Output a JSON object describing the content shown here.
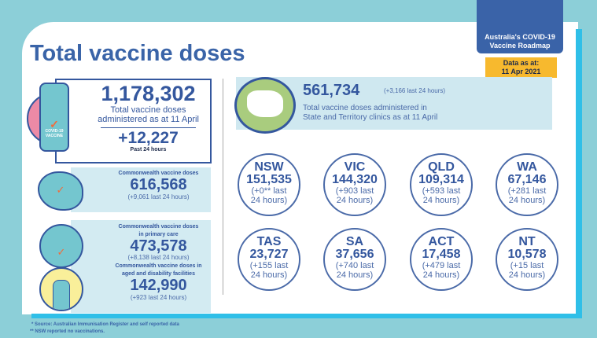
{
  "title": "Total vaccine doses",
  "roadmap": {
    "line1": "Australia's COVID-19",
    "line2": "Vaccine Roadmap"
  },
  "data_as_at": {
    "label": "Data as at:",
    "date": "11 Apr 2021"
  },
  "total": {
    "value": "1,178,302",
    "label1": "Total vaccine doses",
    "label2": "administered as at 11 April",
    "change": "+12,227",
    "change_label": "Past 24 hours",
    "vial_label1": "COVID-19",
    "vial_label2": "VACCINE"
  },
  "commonwealth": {
    "label": "Commonwealth vaccine doses",
    "value": "616,568",
    "change": "(+9,061 last 24 hours)"
  },
  "primary_care": {
    "label1": "Commonwealth vaccine doses",
    "label2": "in primary care",
    "value": "473,578",
    "change": "(+8,138 last 24 hours)"
  },
  "aged_care": {
    "label1": "Commonwealth vaccine doses in",
    "label2": "aged and disability facilities",
    "value": "142,990",
    "change": "(+923 last 24 hours)"
  },
  "state_total": {
    "value": "561,734",
    "change": "(+3,166 last 24 hours)",
    "label1": "Total vaccine doses administered in",
    "label2": "State and Territory clinics as at 11 April"
  },
  "states": [
    {
      "name": "NSW",
      "value": "151,535",
      "change1": "(+0** last",
      "change2": "24 hours)"
    },
    {
      "name": "VIC",
      "value": "144,320",
      "change1": "(+903 last",
      "change2": "24 hours)"
    },
    {
      "name": "QLD",
      "value": "109,314",
      "change1": "(+593 last",
      "change2": "24 hours)"
    },
    {
      "name": "WA",
      "value": "67,146",
      "change1": "(+281 last",
      "change2": "24 hours)"
    },
    {
      "name": "TAS",
      "value": "23,727",
      "change1": "(+155 last",
      "change2": "24 hours)"
    },
    {
      "name": "SA",
      "value": "37,656",
      "change1": "(+740 last",
      "change2": "24 hours)"
    },
    {
      "name": "ACT",
      "value": "17,458",
      "change1": "(+479 last",
      "change2": "24 hours)"
    },
    {
      "name": "NT",
      "value": "10,578",
      "change1": "(+15 last",
      "change2": "24 hours)"
    }
  ],
  "footnotes": [
    "* Source: Australian Immunisation Register and self reported data",
    "** NSW reported no vaccinations."
  ],
  "colors": {
    "primary": "#3a64a8",
    "accent": "#f7b92e",
    "background": "#8ccfd8",
    "panel": "#d3ebf2",
    "stripe": "#2fbfe8"
  }
}
